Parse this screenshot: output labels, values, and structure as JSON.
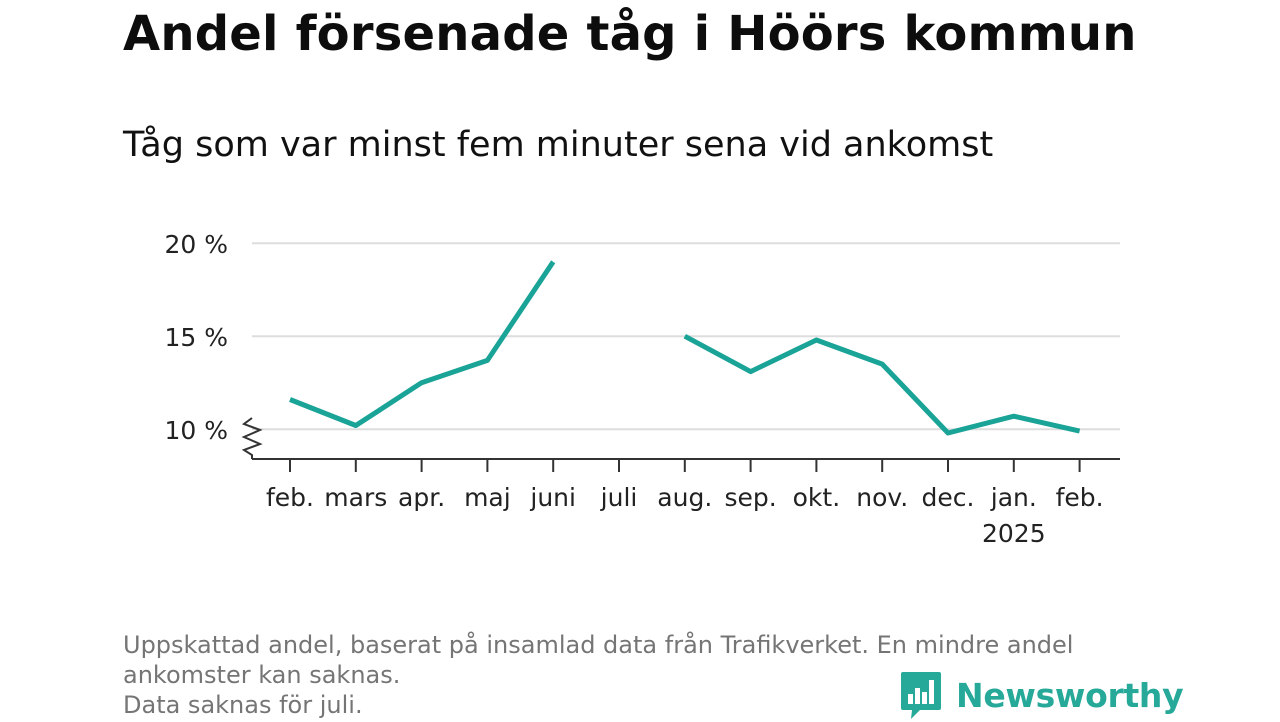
{
  "title": "Andel försenade tåg i Höörs kommun",
  "subtitle": "Tåg som var minst fem minuter sena vid ankomst",
  "notes": [
    "Uppskattad andel, baserat på insamlad data från Trafikverket. En mindre andel",
    "ankomster kan saknas.",
    "Data saknas för juli."
  ],
  "brand": {
    "name": "Newsworthy",
    "logo_icon": "bar-chart-speech-bubble-icon"
  },
  "colors": {
    "line": "#1aa397",
    "grid": "#dddddd",
    "axis": "#333333",
    "brand": "#27a99a"
  },
  "chart_data": {
    "type": "line",
    "categories": [
      "feb.",
      "mars",
      "apr.",
      "maj",
      "juni",
      "juli",
      "aug.",
      "sep.",
      "okt.",
      "nov.",
      "dec.",
      "jan.",
      "feb."
    ],
    "category_sublabels": [
      "",
      "",
      "",
      "",
      "",
      "",
      "",
      "",
      "",
      "",
      "",
      "2025",
      ""
    ],
    "series": [
      {
        "values": [
          11.6,
          10.2,
          12.5,
          13.7,
          19.0,
          null,
          15.0,
          13.1,
          14.8,
          13.5,
          9.8,
          10.7,
          9.9
        ]
      }
    ],
    "yticks": [
      10,
      15,
      20
    ],
    "ytick_labels": [
      "10 %",
      "15 %",
      "20 %"
    ],
    "ylim": [
      8.4,
      20
    ],
    "axis_break": true,
    "grid": true,
    "legend": "none",
    "xlabel": "",
    "ylabel": ""
  }
}
